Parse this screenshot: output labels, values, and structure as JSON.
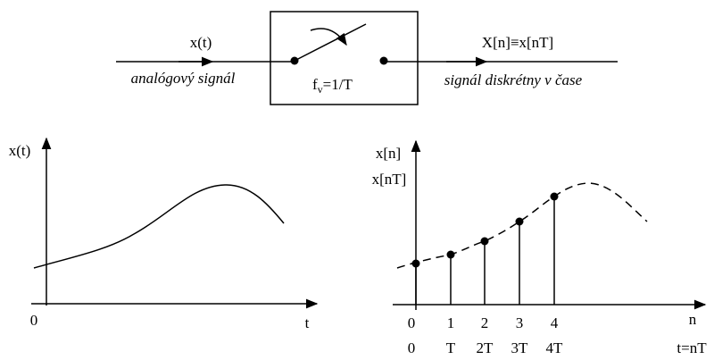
{
  "sampler": {
    "input_label": "x(t)",
    "input_caption": "analógový signál",
    "rate": {
      "symbol": "f",
      "subscript": "v",
      "value": "=1/T"
    },
    "output_label": "X[n]≡x[nT]",
    "output_caption": "signál diskrétny v čase"
  },
  "analog_plot": {
    "y_label": "x(t)",
    "origin": "0",
    "x_label": "t"
  },
  "discrete_plot": {
    "y_labels": [
      "x[n]",
      "x[nT]"
    ],
    "n_ticks": [
      "0",
      "1",
      "2",
      "3",
      "4"
    ],
    "n_label": "n",
    "t_ticks": [
      "0",
      "T",
      "2T",
      "3T",
      "4T"
    ],
    "t_label": "t=nT"
  }
}
